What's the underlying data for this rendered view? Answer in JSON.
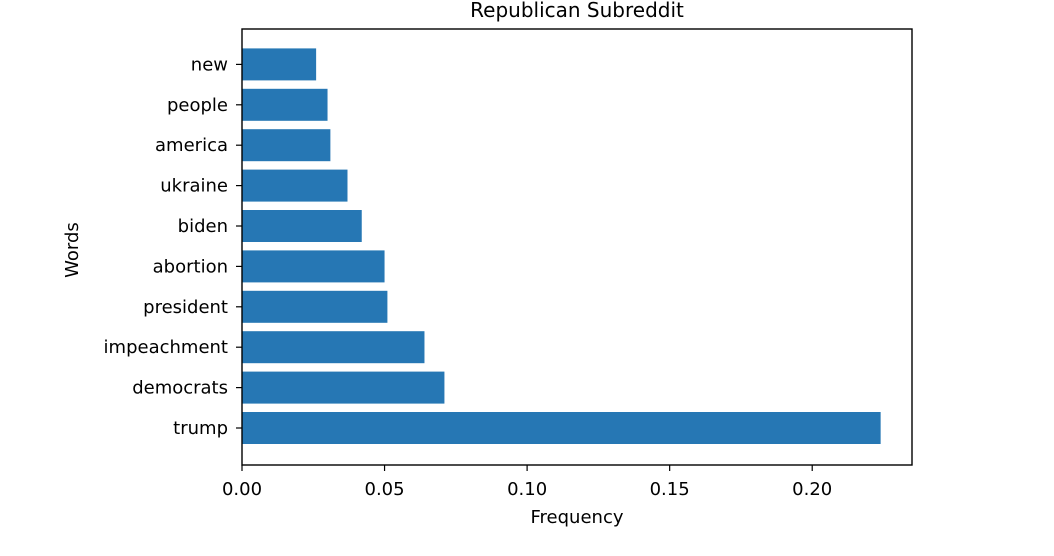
{
  "chart_data": {
    "type": "bar",
    "orientation": "horizontal",
    "title": "Republican Subreddit",
    "xlabel": "Frequency",
    "ylabel": "Words",
    "categories": [
      "trump",
      "democrats",
      "impeachment",
      "president",
      "abortion",
      "biden",
      "ukraine",
      "america",
      "people",
      "new"
    ],
    "values": [
      0.224,
      0.071,
      0.064,
      0.051,
      0.05,
      0.042,
      0.037,
      0.031,
      0.03,
      0.026
    ],
    "xlim": [
      0.0,
      0.235
    ],
    "xticks": [
      "0.00",
      "0.05",
      "0.10",
      "0.15",
      "0.20"
    ],
    "grid": false,
    "legend": "none",
    "colors": {
      "bar": "#2677b4",
      "axis": "#000000",
      "background": "#ffffff"
    }
  }
}
